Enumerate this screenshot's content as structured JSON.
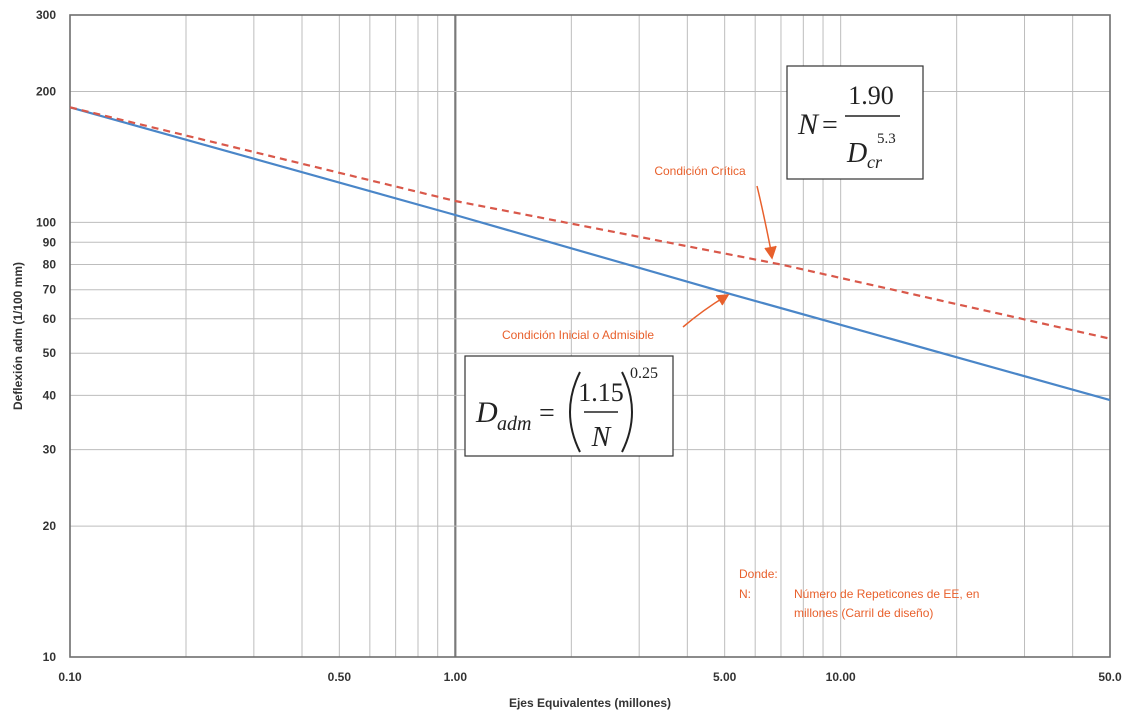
{
  "chart_data": {
    "type": "line",
    "xlabel": "Ejes Equivalentes (millones)",
    "ylabel": "Deflexión adm (1/100 mm)",
    "x_scale": "log",
    "y_scale": "log",
    "xlim": [
      0.1,
      50
    ],
    "ylim": [
      10,
      300
    ],
    "grid": true,
    "x_tick_labels": [
      {
        "value": 0.1,
        "label": "0.10"
      },
      {
        "value": 0.5,
        "label": "0.50"
      },
      {
        "value": 1,
        "label": "1.00"
      },
      {
        "value": 5,
        "label": "5.00"
      },
      {
        "value": 10,
        "label": "10.00"
      },
      {
        "value": 50,
        "label": "50.0"
      }
    ],
    "y_tick_labels": [
      {
        "value": 10,
        "label": "10"
      },
      {
        "value": 20,
        "label": "20"
      },
      {
        "value": 30,
        "label": "30"
      },
      {
        "value": 40,
        "label": "40"
      },
      {
        "value": 50,
        "label": "50"
      },
      {
        "value": 60,
        "label": "60"
      },
      {
        "value": 70,
        "label": "70"
      },
      {
        "value": 80,
        "label": "80"
      },
      {
        "value": 90,
        "label": "90"
      },
      {
        "value": 100,
        "label": "100"
      },
      {
        "value": 200,
        "label": "200"
      },
      {
        "value": 300,
        "label": "300"
      }
    ],
    "series": [
      {
        "name": "Condición Inicial o Admisible",
        "color": "#4a86c8",
        "style": "solid",
        "x": [
          0.1,
          1,
          5,
          50
        ],
        "y": [
          184,
          104,
          69,
          39
        ]
      },
      {
        "name": "Condición Crítica",
        "color": "#d9584a",
        "style": "dashed",
        "x": [
          0.1,
          1,
          7,
          50
        ],
        "y": [
          184,
          112,
          80,
          54
        ]
      }
    ],
    "annotations": {
      "critica_label": "Condición Crítica",
      "inicial_label": "Condición Inicial o Admisible",
      "donde_title": "Donde:",
      "donde_symbol": "N:",
      "donde_line1": "Número de Repeticones de EE, en",
      "donde_line2": "millones (Carril de diseño)"
    },
    "formulas": {
      "critica": {
        "lhs": "N",
        "eq": "=",
        "num": "1.90",
        "den": "D",
        "den_sub": "cr",
        "den_exp": "5.3"
      },
      "admisible": {
        "lhs": "D",
        "lhs_sub": "adm",
        "eq": "=",
        "num": "1.15",
        "den": "N",
        "exp": "0.25"
      }
    }
  }
}
